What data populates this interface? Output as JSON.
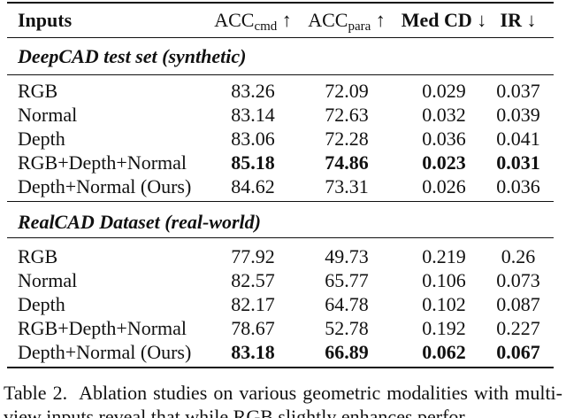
{
  "header": {
    "cells": [
      {
        "text": "Inputs",
        "bold": true
      },
      {
        "text": "ACC",
        "sub": "cmd",
        "arrow": "↑"
      },
      {
        "text": "ACC",
        "sub": "para",
        "arrow": "↑"
      },
      {
        "text": "Med CD",
        "arrow": "↓",
        "bold": true
      },
      {
        "text": "IR",
        "arrow": "↓",
        "bold": true
      }
    ]
  },
  "sections": [
    {
      "title": "DeepCAD test set (synthetic)",
      "bold_row": 3,
      "rows": [
        [
          "RGB",
          83.26,
          72.09,
          0.029,
          0.037
        ],
        [
          "Normal",
          83.14,
          72.63,
          0.032,
          0.039
        ],
        [
          "Depth",
          83.06,
          72.28,
          0.036,
          0.041
        ],
        [
          "RGB+Depth+Normal",
          85.18,
          74.86,
          0.023,
          0.031
        ],
        [
          "Depth+Normal (Ours)",
          84.62,
          73.31,
          0.026,
          0.036
        ]
      ]
    },
    {
      "title": "RealCAD Dataset (real-world)",
      "bold_row": 4,
      "rows": [
        [
          "RGB",
          77.92,
          49.73,
          0.219,
          0.26
        ],
        [
          "Normal",
          82.57,
          65.77,
          0.106,
          0.073
        ],
        [
          "Depth",
          82.17,
          64.78,
          0.102,
          0.087
        ],
        [
          "RGB+Depth+Normal",
          78.67,
          52.78,
          0.192,
          0.227
        ],
        [
          "Depth+Normal (Ours)",
          83.18,
          66.89,
          0.062,
          0.067
        ]
      ]
    }
  ],
  "caption": {
    "label": "Table 2.",
    "text": "Ablation studies on various geometric modalities with multi-view inputs reveal that while RGB slightly enhances perfor"
  }
}
